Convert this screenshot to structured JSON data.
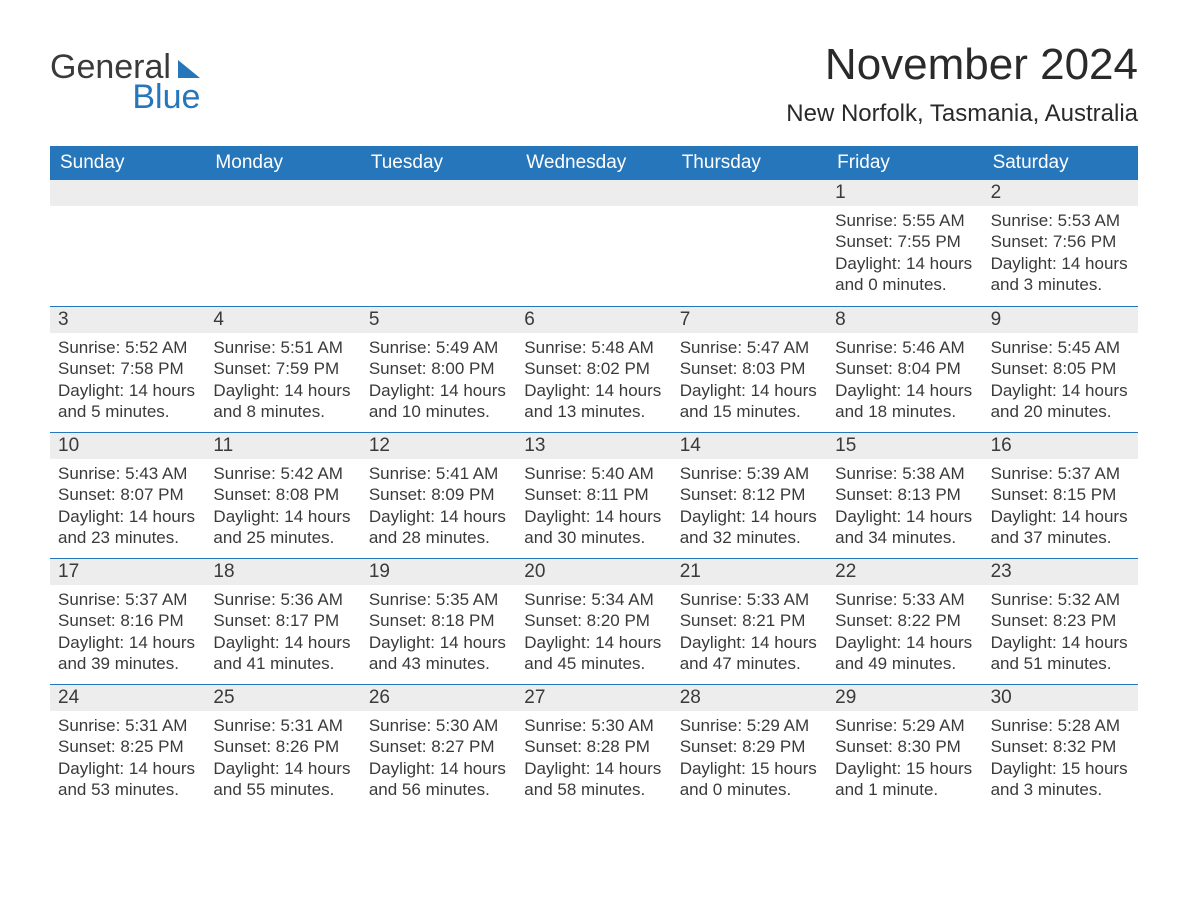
{
  "logo": {
    "text1": "General",
    "text2": "Blue",
    "brand_color": "#2676bb"
  },
  "title": "November 2024",
  "location": "New Norfolk, Tasmania, Australia",
  "colors": {
    "header_bg": "#2676bb",
    "header_text": "#ffffff",
    "daynum_bg": "#ededed",
    "text": "#3a3a3a",
    "border": "#2676bb",
    "page_bg": "#ffffff"
  },
  "typography": {
    "month_title_fontsize": 44,
    "location_fontsize": 24,
    "day_header_fontsize": 19,
    "daynum_fontsize": 19,
    "body_fontsize": 17,
    "font_family": "Arial"
  },
  "day_headers": [
    "Sunday",
    "Monday",
    "Tuesday",
    "Wednesday",
    "Thursday",
    "Friday",
    "Saturday"
  ],
  "weeks": [
    [
      null,
      null,
      null,
      null,
      null,
      {
        "n": "1",
        "sunrise": "5:55 AM",
        "sunset": "7:55 PM",
        "daylight": "14 hours and 0 minutes."
      },
      {
        "n": "2",
        "sunrise": "5:53 AM",
        "sunset": "7:56 PM",
        "daylight": "14 hours and 3 minutes."
      }
    ],
    [
      {
        "n": "3",
        "sunrise": "5:52 AM",
        "sunset": "7:58 PM",
        "daylight": "14 hours and 5 minutes."
      },
      {
        "n": "4",
        "sunrise": "5:51 AM",
        "sunset": "7:59 PM",
        "daylight": "14 hours and 8 minutes."
      },
      {
        "n": "5",
        "sunrise": "5:49 AM",
        "sunset": "8:00 PM",
        "daylight": "14 hours and 10 minutes."
      },
      {
        "n": "6",
        "sunrise": "5:48 AM",
        "sunset": "8:02 PM",
        "daylight": "14 hours and 13 minutes."
      },
      {
        "n": "7",
        "sunrise": "5:47 AM",
        "sunset": "8:03 PM",
        "daylight": "14 hours and 15 minutes."
      },
      {
        "n": "8",
        "sunrise": "5:46 AM",
        "sunset": "8:04 PM",
        "daylight": "14 hours and 18 minutes."
      },
      {
        "n": "9",
        "sunrise": "5:45 AM",
        "sunset": "8:05 PM",
        "daylight": "14 hours and 20 minutes."
      }
    ],
    [
      {
        "n": "10",
        "sunrise": "5:43 AM",
        "sunset": "8:07 PM",
        "daylight": "14 hours and 23 minutes."
      },
      {
        "n": "11",
        "sunrise": "5:42 AM",
        "sunset": "8:08 PM",
        "daylight": "14 hours and 25 minutes."
      },
      {
        "n": "12",
        "sunrise": "5:41 AM",
        "sunset": "8:09 PM",
        "daylight": "14 hours and 28 minutes."
      },
      {
        "n": "13",
        "sunrise": "5:40 AM",
        "sunset": "8:11 PM",
        "daylight": "14 hours and 30 minutes."
      },
      {
        "n": "14",
        "sunrise": "5:39 AM",
        "sunset": "8:12 PM",
        "daylight": "14 hours and 32 minutes."
      },
      {
        "n": "15",
        "sunrise": "5:38 AM",
        "sunset": "8:13 PM",
        "daylight": "14 hours and 34 minutes."
      },
      {
        "n": "16",
        "sunrise": "5:37 AM",
        "sunset": "8:15 PM",
        "daylight": "14 hours and 37 minutes."
      }
    ],
    [
      {
        "n": "17",
        "sunrise": "5:37 AM",
        "sunset": "8:16 PM",
        "daylight": "14 hours and 39 minutes."
      },
      {
        "n": "18",
        "sunrise": "5:36 AM",
        "sunset": "8:17 PM",
        "daylight": "14 hours and 41 minutes."
      },
      {
        "n": "19",
        "sunrise": "5:35 AM",
        "sunset": "8:18 PM",
        "daylight": "14 hours and 43 minutes."
      },
      {
        "n": "20",
        "sunrise": "5:34 AM",
        "sunset": "8:20 PM",
        "daylight": "14 hours and 45 minutes."
      },
      {
        "n": "21",
        "sunrise": "5:33 AM",
        "sunset": "8:21 PM",
        "daylight": "14 hours and 47 minutes."
      },
      {
        "n": "22",
        "sunrise": "5:33 AM",
        "sunset": "8:22 PM",
        "daylight": "14 hours and 49 minutes."
      },
      {
        "n": "23",
        "sunrise": "5:32 AM",
        "sunset": "8:23 PM",
        "daylight": "14 hours and 51 minutes."
      }
    ],
    [
      {
        "n": "24",
        "sunrise": "5:31 AM",
        "sunset": "8:25 PM",
        "daylight": "14 hours and 53 minutes."
      },
      {
        "n": "25",
        "sunrise": "5:31 AM",
        "sunset": "8:26 PM",
        "daylight": "14 hours and 55 minutes."
      },
      {
        "n": "26",
        "sunrise": "5:30 AM",
        "sunset": "8:27 PM",
        "daylight": "14 hours and 56 minutes."
      },
      {
        "n": "27",
        "sunrise": "5:30 AM",
        "sunset": "8:28 PM",
        "daylight": "14 hours and 58 minutes."
      },
      {
        "n": "28",
        "sunrise": "5:29 AM",
        "sunset": "8:29 PM",
        "daylight": "15 hours and 0 minutes."
      },
      {
        "n": "29",
        "sunrise": "5:29 AM",
        "sunset": "8:30 PM",
        "daylight": "15 hours and 1 minute."
      },
      {
        "n": "30",
        "sunrise": "5:28 AM",
        "sunset": "8:32 PM",
        "daylight": "15 hours and 3 minutes."
      }
    ]
  ],
  "labels": {
    "sunrise": "Sunrise: ",
    "sunset": "Sunset: ",
    "daylight": "Daylight: "
  }
}
